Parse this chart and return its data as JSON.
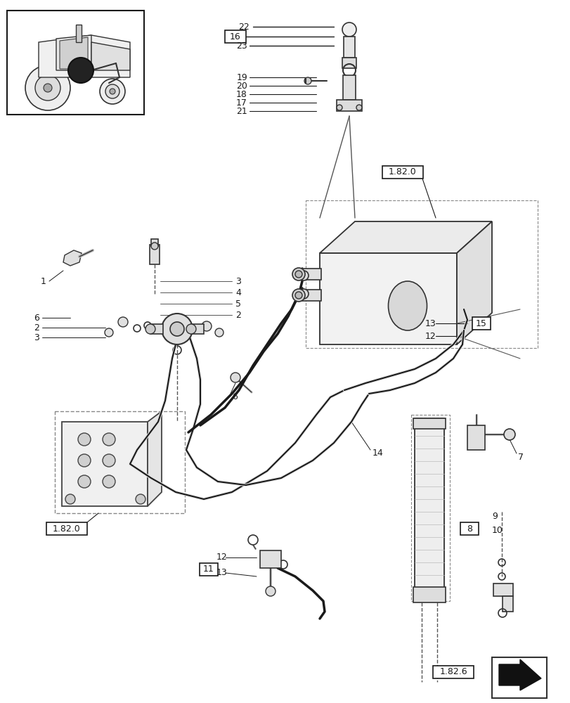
{
  "bg_color": "#ffffff",
  "lc": "#1a1a1a",
  "lc_light": "#555555",
  "lc_dashed": "#555555",
  "fig_width": 8.12,
  "fig_height": 10.0,
  "dpi": 100
}
